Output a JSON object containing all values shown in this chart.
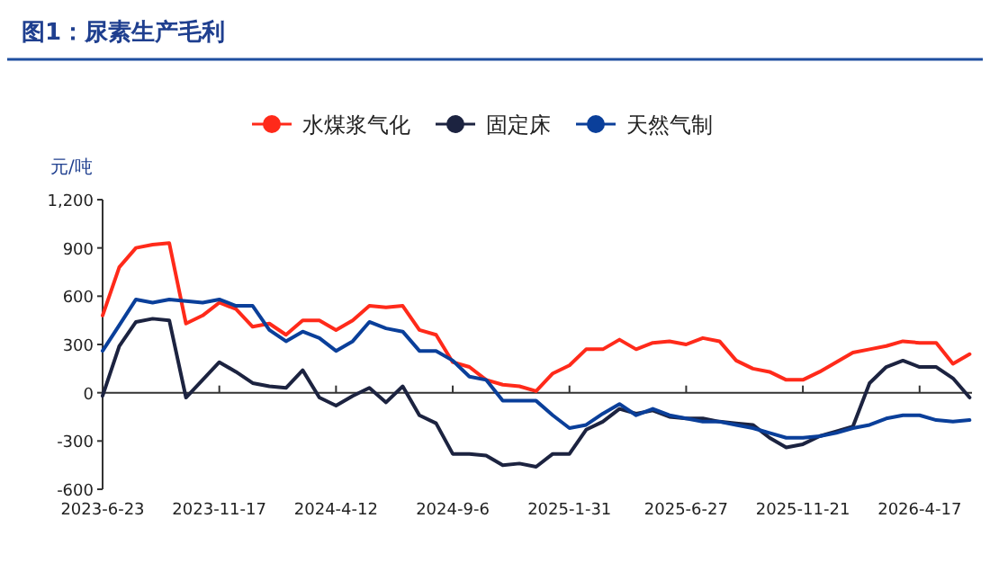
{
  "chart_data": {
    "type": "line",
    "title": "图1：尿素生产毛利",
    "ylabel": "元/吨",
    "legend": "top",
    "marker": "none",
    "line_style": "solid",
    "x": [
      "2023-06-23",
      "2023-07-14",
      "2023-08-04",
      "2023-08-25",
      "2023-09-15",
      "2023-10-06",
      "2023-10-27",
      "2023-11-17",
      "2023-12-08",
      "2023-12-29",
      "2024-01-19",
      "2024-02-09",
      "2024-03-01",
      "2024-03-22",
      "2024-04-12",
      "2024-05-03",
      "2024-05-24",
      "2024-06-14",
      "2024-07-05",
      "2024-07-26",
      "2024-08-16",
      "2024-09-06",
      "2024-09-27",
      "2024-10-18",
      "2024-11-08",
      "2024-11-29",
      "2024-12-20",
      "2025-01-10",
      "2025-01-31",
      "2025-02-21",
      "2025-03-14",
      "2025-04-04",
      "2025-04-25",
      "2025-05-16",
      "2025-06-06",
      "2025-06-27",
      "2025-07-18",
      "2025-08-08",
      "2025-08-29",
      "2025-09-19",
      "2025-10-10",
      "2025-10-31",
      "2025-11-21",
      "2025-12-12",
      "2026-01-02",
      "2026-01-23",
      "2026-02-13",
      "2026-03-06",
      "2026-03-27",
      "2026-04-17",
      "2026-05-08",
      "2026-05-29",
      "2026-06-19"
    ],
    "series": [
      {
        "name": "水煤浆气化",
        "color": "#ff2a1a",
        "values": [
          480,
          780,
          900,
          920,
          930,
          430,
          480,
          560,
          520,
          410,
          430,
          360,
          450,
          450,
          390,
          450,
          540,
          530,
          540,
          390,
          360,
          190,
          160,
          80,
          50,
          40,
          10,
          120,
          170,
          270,
          270,
          330,
          270,
          310,
          320,
          300,
          340,
          320,
          200,
          150,
          130,
          80,
          80,
          130,
          190,
          250,
          270,
          290,
          320,
          310,
          310,
          180,
          240
        ]
      },
      {
        "name": "固定床",
        "color": "#1c2340",
        "values": [
          -20,
          290,
          440,
          460,
          450,
          -30,
          80,
          190,
          130,
          60,
          40,
          30,
          140,
          -30,
          -80,
          -20,
          30,
          -60,
          40,
          -140,
          -190,
          -380,
          -380,
          -390,
          -450,
          -440,
          -460,
          -380,
          -380,
          -230,
          -180,
          -100,
          -130,
          -110,
          -150,
          -160,
          -160,
          -180,
          -190,
          -200,
          -280,
          -340,
          -320,
          -270,
          -240,
          -210,
          60,
          160,
          200,
          160,
          160,
          90,
          -30
        ]
      },
      {
        "name": "天然气制",
        "color": "#0a3f9a",
        "values": [
          260,
          420,
          580,
          560,
          580,
          570,
          560,
          580,
          540,
          540,
          390,
          320,
          380,
          340,
          260,
          320,
          440,
          400,
          380,
          260,
          260,
          200,
          100,
          80,
          -50,
          -50,
          -50,
          -140,
          -220,
          -200,
          -130,
          -70,
          -140,
          -100,
          -140,
          -160,
          -180,
          -180,
          -200,
          -220,
          -250,
          -280,
          -280,
          -270,
          -250,
          -220,
          -200,
          -160,
          -140,
          -140,
          -170,
          -180,
          -170
        ]
      }
    ],
    "xlim": [
      "2023-06-23",
      "2026-06-22"
    ],
    "xticks": [
      {
        "value": "2023-06-23",
        "label": "2023-6-23"
      },
      {
        "value": "2023-11-17",
        "label": "2023-11-17"
      },
      {
        "value": "2024-04-12",
        "label": "2024-4-12"
      },
      {
        "value": "2024-09-06",
        "label": "2024-9-6"
      },
      {
        "value": "2025-01-31",
        "label": "2025-1-31"
      },
      {
        "value": "2025-06-27",
        "label": "2025-6-27"
      },
      {
        "value": "2025-11-21",
        "label": "2025-11-21"
      },
      {
        "value": "2026-04-17",
        "label": "2026-4-17"
      }
    ],
    "ylim": [
      -600,
      1200
    ],
    "yticks": [
      -600,
      -300,
      0,
      300,
      600,
      900,
      {
        "value": 1200,
        "label": "1,200"
      }
    ]
  }
}
